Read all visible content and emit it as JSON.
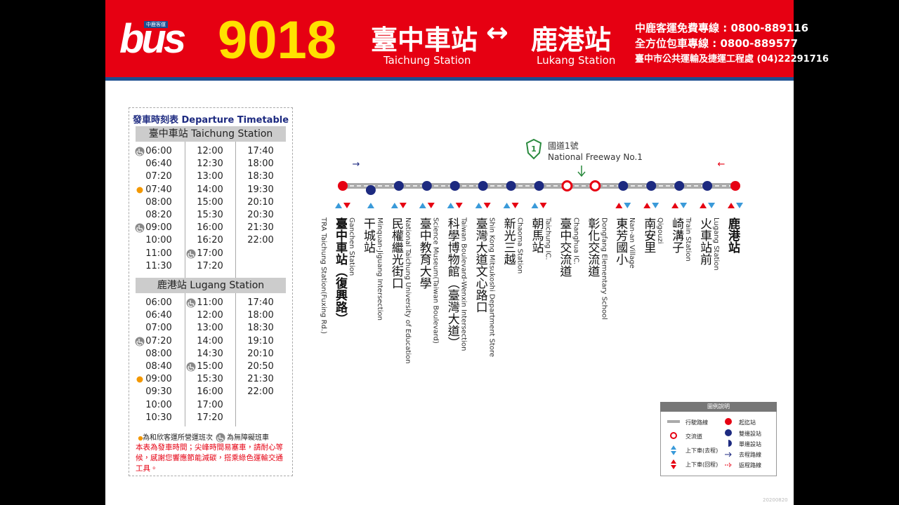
{
  "header": {
    "logo": "bus",
    "logo_caption": "中鹿客運",
    "route": "9018",
    "from": "臺中車站",
    "arrow": "↔",
    "to": "鹿港站",
    "from_en": "Taichung  Station",
    "to_en": "Lukang Station",
    "hotlines": [
      "中鹿客運免費專線 : 0800-889116",
      "全方位包車專線 : 0800-889577",
      "臺中市公共運輸及捷運工程處 (04)22291716"
    ]
  },
  "timetable": {
    "title": "發車時刻表 Departure Timetable",
    "sections": [
      {
        "title": "臺中車站 Taichung Station",
        "columns": [
          [
            {
              "time": "06:00",
              "flag": "wheelchair"
            },
            {
              "time": "06:40"
            },
            {
              "time": "07:20"
            },
            {
              "time": "07:40",
              "flag": "dot"
            },
            {
              "time": "08:00"
            },
            {
              "time": "08:20"
            },
            {
              "time": "09:00",
              "flag": "wheelchair"
            },
            {
              "time": "10:00"
            },
            {
              "time": "11:00"
            },
            {
              "time": "11:30"
            }
          ],
          [
            {
              "time": "12:00"
            },
            {
              "time": "12:30"
            },
            {
              "time": "13:00"
            },
            {
              "time": "14:00"
            },
            {
              "time": "15:00"
            },
            {
              "time": "15:30"
            },
            {
              "time": "16:00"
            },
            {
              "time": "16:20"
            },
            {
              "time": "17:00",
              "flag": "wheelchair"
            },
            {
              "time": "17:20"
            }
          ],
          [
            {
              "time": "17:40"
            },
            {
              "time": "18:00"
            },
            {
              "time": "18:30"
            },
            {
              "time": "19:30"
            },
            {
              "time": "20:10"
            },
            {
              "time": "20:30"
            },
            {
              "time": "21:30"
            },
            {
              "time": "22:00"
            }
          ]
        ]
      },
      {
        "title": "鹿港站 Lugang Station",
        "columns": [
          [
            {
              "time": "06:00"
            },
            {
              "time": "06:40"
            },
            {
              "time": "07:00"
            },
            {
              "time": "07:20",
              "flag": "wheelchair"
            },
            {
              "time": "08:00"
            },
            {
              "time": "08:40"
            },
            {
              "time": "09:00",
              "flag": "dot"
            },
            {
              "time": "09:30"
            },
            {
              "time": "10:00"
            },
            {
              "time": "10:30"
            }
          ],
          [
            {
              "time": "11:00",
              "flag": "wheelchair"
            },
            {
              "time": "12:00"
            },
            {
              "time": "13:00"
            },
            {
              "time": "14:00"
            },
            {
              "time": "14:30"
            },
            {
              "time": "15:00",
              "flag": "wheelchair"
            },
            {
              "time": "15:30"
            },
            {
              "time": "16:00"
            },
            {
              "time": "17:00"
            },
            {
              "time": "17:20"
            }
          ],
          [
            {
              "time": "17:40"
            },
            {
              "time": "18:00"
            },
            {
              "time": "18:30"
            },
            {
              "time": "19:10"
            },
            {
              "time": "20:10"
            },
            {
              "time": "20:50"
            },
            {
              "time": "21:30"
            },
            {
              "time": "22:00"
            }
          ]
        ]
      }
    ],
    "legend": [
      {
        "flag": "dot",
        "text": "為和欣客運所營運班次"
      },
      {
        "flag": "wheelchair",
        "text": "為無障礙班車"
      }
    ],
    "note": "本表為發車時間；尖峰時間易塞車，請耐心等候，感謝您響應節能減碳，搭乘綠色運輸交通工具。"
  },
  "route_map": {
    "freeway": {
      "number": "1",
      "name": "國道1號",
      "name_en": "National Freeway No.1"
    },
    "outbound_arrow": "→",
    "return_arrow": "←",
    "stops": [
      {
        "name": "臺中車站（復興路）",
        "name_en": "TRA Taichung Station(Fuxing Rd.)",
        "kind": "terminal",
        "boarding": "both"
      },
      {
        "name": "干城站",
        "name_en": "Ganchen Station",
        "kind": "single",
        "boarding": "outbound"
      },
      {
        "name": "民權繼光街口",
        "name_en": "Minquan-Jiguang Intersection",
        "kind": "stop",
        "boarding": "both"
      },
      {
        "name": "臺中教育大學",
        "name_en": "National Taichung University of Education",
        "kind": "stop",
        "boarding": "both"
      },
      {
        "name": "科學博物館（臺灣大道）",
        "name_en": "Science Museum(Taiwan Boulevard)",
        "kind": "stop",
        "boarding": "both"
      },
      {
        "name": "臺灣大道文心路口",
        "name_en": "Taiwan Boulevard-Wenxin Intersection",
        "kind": "stop",
        "boarding": "both"
      },
      {
        "name": "新光三越",
        "name_en": "Shin Kong Mitsukoshi Department Store",
        "kind": "stop",
        "boarding": "both"
      },
      {
        "name": "朝馬站",
        "name_en": "Chaoma Station",
        "kind": "stop",
        "boarding": "both"
      },
      {
        "name": "臺中交流道",
        "name_en": "Taichung IC.",
        "kind": "interchange",
        "boarding": "none"
      },
      {
        "name": "彰化交流道",
        "name_en": "Changhua IC.",
        "kind": "interchange",
        "boarding": "none"
      },
      {
        "name": "東芳國小",
        "name_en": "Dongfang Elementary School",
        "kind": "stop",
        "boarding": "both"
      },
      {
        "name": "南安里",
        "name_en": "Nan-an Village",
        "kind": "stop",
        "boarding": "both"
      },
      {
        "name": "崎溝子",
        "name_en": "Qigouzi",
        "kind": "stop",
        "boarding": "both"
      },
      {
        "name": "火車站前",
        "name_en": "Train Station",
        "kind": "stop",
        "boarding": "both"
      },
      {
        "name": "鹿港站",
        "name_en": "Lugang Station",
        "kind": "terminal",
        "boarding": "both"
      }
    ]
  },
  "legend": {
    "title": "圖例說明",
    "route_line": "行駛路線",
    "terminal": "起迄站",
    "interchange": "交流道",
    "both_sides": "雙邊設站",
    "one_side": "單邊設站",
    "board_out": "上下車(去程)",
    "board_return": "上下車(回程)",
    "outbound": "去程路線",
    "return": "返程路線"
  },
  "date": "20200820"
}
